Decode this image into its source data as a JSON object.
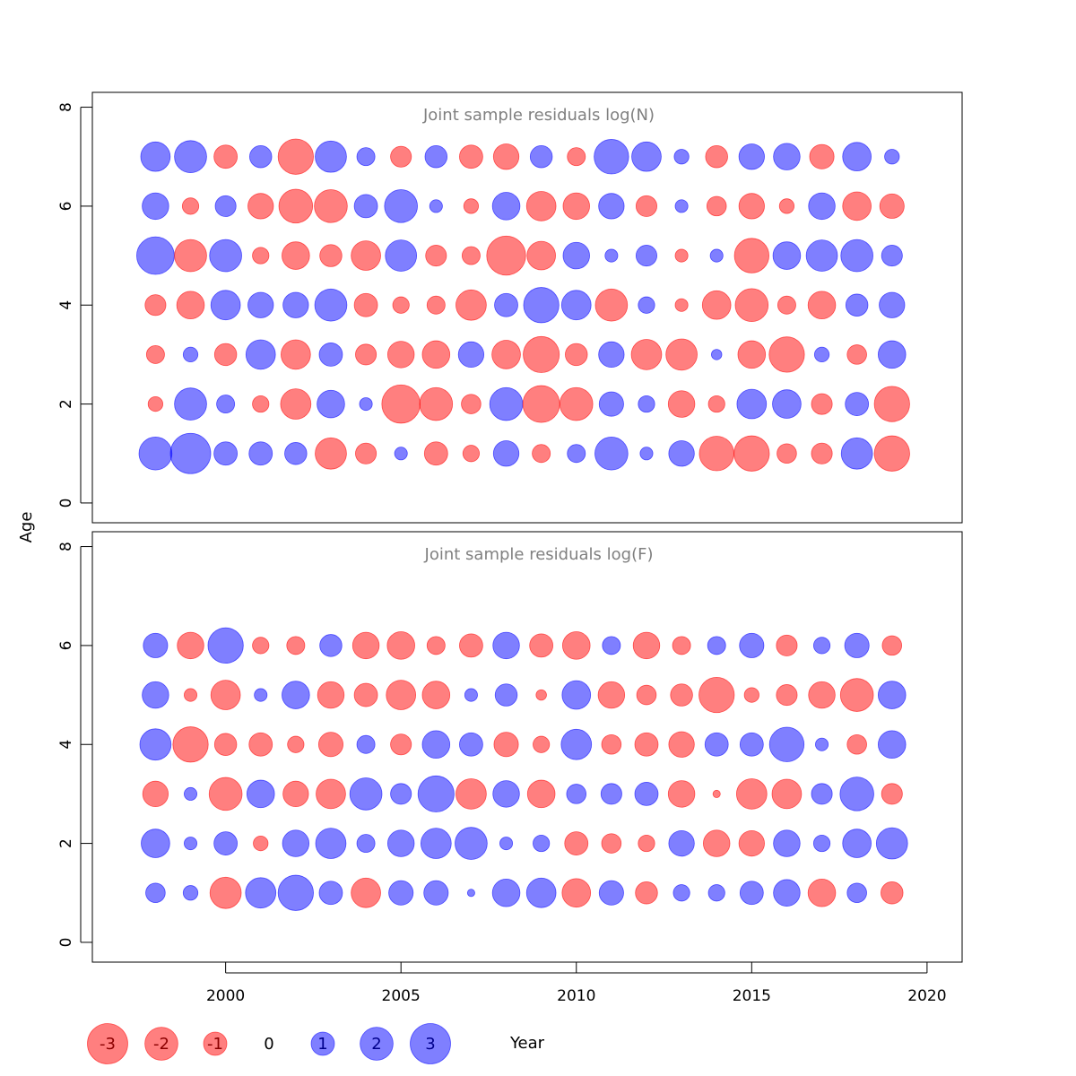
{
  "chart_data": {
    "type": "scatter",
    "subtype": "bubble",
    "xlabel": "Year",
    "ylabel": "Age",
    "xlim": [
      1996.2,
      2021.0
    ],
    "x_ticks": [
      2000,
      2005,
      2010,
      2015,
      2020
    ],
    "years": [
      1998,
      1999,
      2000,
      2001,
      2002,
      2003,
      2004,
      2005,
      2006,
      2007,
      2008,
      2009,
      2010,
      2011,
      2012,
      2013,
      2014,
      2015,
      2016,
      2017,
      2018,
      2019
    ],
    "colors": {
      "positive": "#0000ff",
      "negative": "#ff0000",
      "opacity": 0.5
    },
    "legend": {
      "values": [
        -3,
        -2,
        -1,
        0,
        1,
        2,
        3
      ],
      "labels": [
        "-3",
        "-2",
        "-1",
        "0",
        "1",
        "2",
        "3"
      ],
      "placement": "bottom"
    },
    "panels": [
      {
        "title": "Joint sample residuals log(N)",
        "ylim": [
          -0.4,
          8.3
        ],
        "y_ticks": [
          0,
          2,
          4,
          6,
          8
        ],
        "ages": [
          1,
          2,
          3,
          4,
          5,
          6,
          7
        ],
        "residuals": [
          [
            2.0,
            3.0,
            1.0,
            1.0,
            0.9,
            -1.8,
            -0.8,
            0.3,
            -1.0,
            -0.5,
            1.2,
            -0.6,
            0.6,
            2.0,
            0.3,
            1.2,
            -2.2,
            -2.3,
            -0.7,
            -0.8,
            1.8,
            -2.3
          ],
          [
            -0.4,
            1.9,
            0.6,
            -0.5,
            -1.7,
            1.4,
            0.3,
            -2.7,
            -2.0,
            -0.7,
            2.0,
            -2.5,
            -2.0,
            1.1,
            0.5,
            -1.3,
            -0.5,
            1.6,
            1.5,
            -0.8,
            1.0,
            -2.3
          ],
          [
            -0.6,
            0.4,
            -0.9,
            1.6,
            -1.6,
            1.0,
            -0.8,
            -1.3,
            -1.4,
            1.2,
            -1.5,
            -2.4,
            -0.9,
            1.2,
            -1.7,
            -1.8,
            0.2,
            -1.4,
            -2.3,
            0.4,
            -0.7,
            1.4
          ],
          [
            -0.8,
            -1.4,
            1.6,
            1.2,
            1.2,
            1.9,
            -1.0,
            -0.5,
            -0.6,
            -1.7,
            1.0,
            2.3,
            1.6,
            -1.9,
            0.5,
            -0.3,
            -1.5,
            -2.0,
            -0.6,
            -1.4,
            0.9,
            1.2
          ],
          [
            2.6,
            -1.9,
            1.9,
            -0.5,
            -1.4,
            -0.9,
            -1.6,
            1.8,
            -0.8,
            -0.6,
            -2.8,
            -1.5,
            1.3,
            0.3,
            0.8,
            -0.3,
            0.3,
            -2.2,
            1.4,
            1.8,
            1.9,
            0.8
          ],
          [
            1.3,
            -0.5,
            0.8,
            -1.2,
            -2.1,
            -2.0,
            1.0,
            2.0,
            0.3,
            -0.4,
            1.4,
            -1.6,
            -1.3,
            1.2,
            -0.8,
            0.3,
            -0.7,
            -1.2,
            -0.4,
            1.3,
            -1.5,
            -1.1
          ],
          [
            1.6,
            1.9,
            -1.0,
            0.9,
            -2.3,
            1.8,
            0.6,
            -0.8,
            0.9,
            -1.0,
            -1.2,
            0.9,
            -0.6,
            2.2,
            1.6,
            0.4,
            -0.9,
            1.2,
            1.3,
            -1.1,
            1.5,
            0.4
          ]
        ]
      },
      {
        "title": "Joint sample residuals log(F)",
        "ylim": [
          -0.4,
          8.3
        ],
        "y_ticks": [
          0,
          2,
          4,
          6,
          8
        ],
        "ages": [
          1,
          2,
          3,
          4,
          5,
          6
        ],
        "residuals": [
          [
            0.7,
            0.4,
            -1.8,
            1.7,
            2.3,
            1.0,
            -1.6,
            1.1,
            1.1,
            0.1,
            1.4,
            1.6,
            -1.5,
            1.1,
            -0.9,
            0.5,
            0.5,
            1.0,
            1.3,
            -1.4,
            0.7,
            -0.9
          ],
          [
            1.5,
            0.3,
            1.0,
            -0.4,
            1.3,
            1.7,
            0.6,
            1.3,
            1.7,
            1.9,
            0.3,
            0.5,
            -1.0,
            -0.7,
            -0.5,
            1.2,
            -1.3,
            -1.2,
            1.3,
            0.5,
            1.5,
            1.8
          ],
          [
            -1.2,
            0.3,
            -2.0,
            1.4,
            -1.2,
            -1.6,
            1.9,
            0.8,
            2.4,
            -1.7,
            1.3,
            -1.4,
            0.7,
            0.8,
            1.0,
            -1.3,
            -0.1,
            -1.7,
            -1.6,
            0.8,
            2.1,
            -0.8
          ],
          [
            1.8,
            -2.3,
            -0.9,
            -1.0,
            -0.5,
            -1.1,
            0.6,
            -0.8,
            1.4,
            1.0,
            -1.1,
            -0.5,
            1.7,
            -0.7,
            -1.0,
            -1.2,
            1.0,
            1.0,
            2.2,
            0.3,
            -0.7,
            1.4
          ],
          [
            1.3,
            -0.3,
            -1.6,
            0.3,
            1.4,
            -1.3,
            -1.0,
            -1.6,
            -1.4,
            0.3,
            0.9,
            -0.2,
            1.5,
            -1.3,
            -0.7,
            -0.9,
            -2.3,
            -0.4,
            -0.8,
            -1.3,
            -2.0,
            1.4
          ],
          [
            1.1,
            -1.3,
            2.3,
            -0.5,
            -0.6,
            0.9,
            -1.3,
            -1.4,
            -0.6,
            -1.0,
            1.3,
            -1.0,
            -1.4,
            0.6,
            -1.3,
            -0.6,
            0.6,
            1.1,
            -0.8,
            0.5,
            1.1,
            -0.7
          ]
        ]
      }
    ]
  }
}
